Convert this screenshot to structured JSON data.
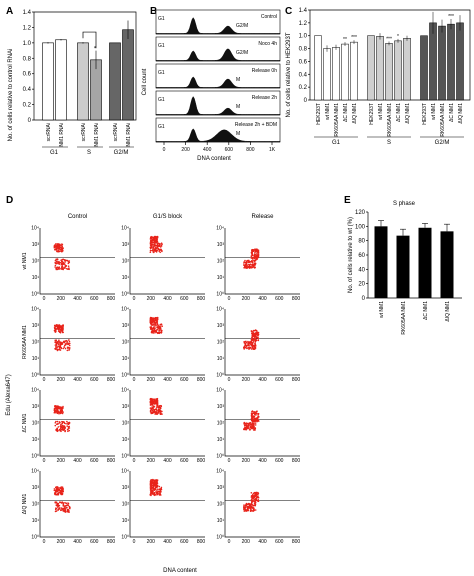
{
  "panel_labels": [
    "A",
    "B",
    "C",
    "D",
    "E"
  ],
  "chart_data": [
    {
      "panel": "A",
      "type": "bar",
      "ylabel": "No. of cells relative to control RNAi",
      "ylim": [
        0,
        1.4
      ],
      "yticks": [
        "0",
        "0.2",
        "0.4",
        "0.6",
        "0.8",
        "1.0",
        "1.2",
        "1.4"
      ],
      "categories": [
        "scrRNAi",
        "NM1 RNAi",
        "scrRNAi",
        "NM1 RNAi",
        "scrRNAi",
        "NM1 RNAi"
      ],
      "groups": [
        "G1",
        "S",
        "G2/M"
      ],
      "values": [
        1.0,
        1.04,
        1.0,
        0.78,
        1.0,
        1.17
      ],
      "errors": [
        0.01,
        0.01,
        0.01,
        0.12,
        0.0,
        0.12
      ],
      "colors": [
        "#ffffff",
        "#ffffff",
        "#cccccc",
        "#a6a6a6",
        "#666666",
        "#666666"
      ],
      "annotation": "*"
    },
    {
      "panel": "B",
      "type": "area",
      "ylabel": "Cell count",
      "xlabel": "DNA content",
      "xticks": [
        "0",
        "200",
        "400",
        "600",
        "800",
        "1K"
      ],
      "tracks": [
        {
          "name": "Control",
          "peaks": [
            "G1",
            "G2/M"
          ]
        },
        {
          "name": "Noco 4h",
          "peaks": [
            "G1",
            "G2/M"
          ]
        },
        {
          "name": "Release 0h",
          "peaks": [
            "G1",
            "M"
          ]
        },
        {
          "name": "Release 2h",
          "peaks": [
            "G1",
            "M"
          ]
        },
        {
          "name": "Release 2h + BDM",
          "peaks": [
            "G1",
            "M"
          ]
        }
      ]
    },
    {
      "panel": "C",
      "type": "bar",
      "ylabel": "No. of cells relative to HEK293T",
      "ylim": [
        0,
        1.4
      ],
      "yticks": [
        "0",
        "0.2",
        "0.4",
        "0.6",
        "0.8",
        "1.0",
        "1.2",
        "1.4"
      ],
      "categories": [
        "HEK293T",
        "wt NM1",
        "RK605AA NM1",
        "ΔC NM1",
        "ΔIQ NM1",
        "HEK293T",
        "wt NM1",
        "RK605AA NM1",
        "ΔC NM1",
        "ΔIQ NM1",
        "HEK293T",
        "wt NM1",
        "RK605AA NM1",
        "ΔC NM1",
        "ΔIQ NM1"
      ],
      "groups": [
        "G1",
        "S",
        "G2/M"
      ],
      "values": [
        1.0,
        0.8,
        0.82,
        0.87,
        0.9,
        1.0,
        0.99,
        0.88,
        0.92,
        0.96,
        1.0,
        1.2,
        1.15,
        1.18,
        1.2
      ],
      "errors": [
        0.0,
        0.05,
        0.04,
        0.03,
        0.03,
        0.0,
        0.05,
        0.03,
        0.03,
        0.04,
        0.0,
        0.17,
        0.1,
        0.08,
        0.12
      ],
      "stars": [
        "",
        "",
        "",
        "**",
        "***",
        "",
        "",
        "***",
        "*",
        "",
        "",
        "",
        "",
        "***",
        ""
      ],
      "colors": [
        "#ffffff",
        "#ffffff",
        "#ffffff",
        "#ffffff",
        "#ffffff",
        "#d0d0d0",
        "#d0d0d0",
        "#d0d0d0",
        "#d0d0d0",
        "#d0d0d0",
        "#555555",
        "#555555",
        "#555555",
        "#555555",
        "#555555"
      ]
    },
    {
      "panel": "D",
      "type": "scatter",
      "ylabel": "Edu (Alexa647)",
      "xlabel": "DNA content",
      "columns": [
        "Control",
        "G1/S block",
        "Release"
      ],
      "rows": [
        "wt NM1",
        "RK605AA NM1",
        "ΔC NM1",
        "ΔIQ NM1"
      ],
      "xticks": [
        "0",
        "200",
        "400",
        "600",
        "800"
      ],
      "yticks": [
        "10⁰",
        "10¹",
        "10²",
        "10³",
        "10⁴"
      ],
      "dot_color": "#e8231a"
    },
    {
      "panel": "E",
      "type": "bar",
      "title": "S phase",
      "ylabel": "No. of cells relative to wt (%)",
      "ylim": [
        0,
        120
      ],
      "yticks": [
        "0",
        "20",
        "40",
        "60",
        "80",
        "100",
        "120"
      ],
      "categories": [
        "wt NM1",
        "RK605AA NM1",
        "ΔC NM1",
        "ΔIQ NM1"
      ],
      "values": [
        100,
        87,
        98,
        93
      ],
      "errors": [
        8,
        9,
        6,
        10
      ],
      "color": "#000000"
    }
  ]
}
